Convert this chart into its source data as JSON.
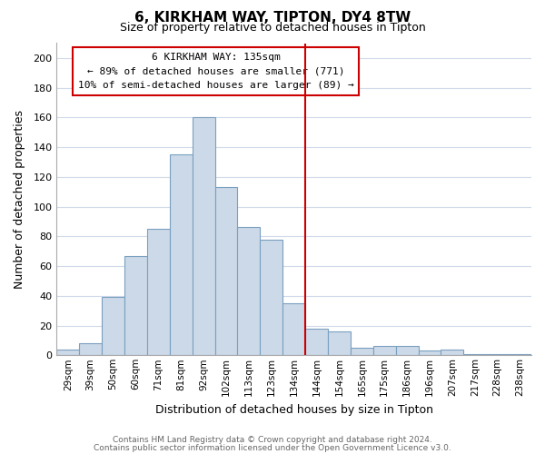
{
  "title": "6, KIRKHAM WAY, TIPTON, DY4 8TW",
  "subtitle": "Size of property relative to detached houses in Tipton",
  "xlabel": "Distribution of detached houses by size in Tipton",
  "ylabel": "Number of detached properties",
  "bar_color": "#ccd9e8",
  "bar_edge_color": "#7aa0c0",
  "categories": [
    "29sqm",
    "39sqm",
    "50sqm",
    "60sqm",
    "71sqm",
    "81sqm",
    "92sqm",
    "102sqm",
    "113sqm",
    "123sqm",
    "134sqm",
    "144sqm",
    "154sqm",
    "165sqm",
    "175sqm",
    "186sqm",
    "196sqm",
    "207sqm",
    "217sqm",
    "228sqm",
    "238sqm"
  ],
  "values": [
    4,
    8,
    39,
    67,
    85,
    135,
    160,
    113,
    86,
    78,
    35,
    18,
    16,
    5,
    6,
    6,
    3,
    4,
    1,
    1,
    1
  ],
  "vline_x": 10.5,
  "vline_color": "#cc0000",
  "annotation_title": "6 KIRKHAM WAY: 135sqm",
  "annotation_line1": "← 89% of detached houses are smaller (771)",
  "annotation_line2": "10% of semi-detached houses are larger (89) →",
  "ylim": [
    0,
    210
  ],
  "yticks": [
    0,
    20,
    40,
    60,
    80,
    100,
    120,
    140,
    160,
    180,
    200
  ],
  "footer1": "Contains HM Land Registry data © Crown copyright and database right 2024.",
  "footer2": "Contains public sector information licensed under the Open Government Licence v3.0.",
  "background_color": "#ffffff",
  "grid_color": "#d0daea"
}
